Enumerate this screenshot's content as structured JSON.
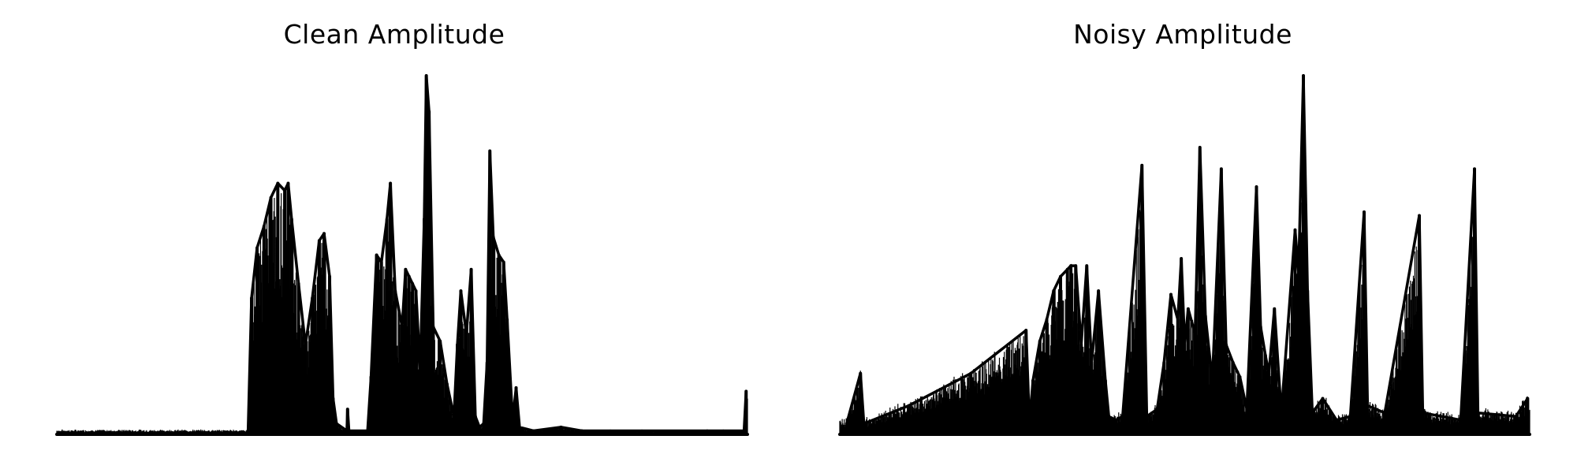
{
  "colors": {
    "background": "#ffffff",
    "series": "#000000"
  },
  "chart_data": [
    {
      "type": "line",
      "title": "Clean Amplitude",
      "xlabel": "",
      "ylabel": "",
      "axes_visible": false,
      "grid": false,
      "x_range": [
        0,
        1
      ],
      "ylim": [
        0,
        1
      ],
      "envelope_peaks": [
        {
          "x": 0.277,
          "y": 0.01
        },
        {
          "x": 0.282,
          "y": 0.38
        },
        {
          "x": 0.29,
          "y": 0.52
        },
        {
          "x": 0.3,
          "y": 0.58
        },
        {
          "x": 0.31,
          "y": 0.66
        },
        {
          "x": 0.32,
          "y": 0.7
        },
        {
          "x": 0.33,
          "y": 0.68
        },
        {
          "x": 0.335,
          "y": 0.7
        },
        {
          "x": 0.34,
          "y": 0.6
        },
        {
          "x": 0.35,
          "y": 0.42
        },
        {
          "x": 0.36,
          "y": 0.25
        },
        {
          "x": 0.37,
          "y": 0.38
        },
        {
          "x": 0.38,
          "y": 0.54
        },
        {
          "x": 0.387,
          "y": 0.56
        },
        {
          "x": 0.395,
          "y": 0.44
        },
        {
          "x": 0.4,
          "y": 0.1
        },
        {
          "x": 0.405,
          "y": 0.03
        },
        {
          "x": 0.42,
          "y": 0.01
        },
        {
          "x": 0.421,
          "y": 0.07
        },
        {
          "x": 0.423,
          "y": 0.01
        },
        {
          "x": 0.45,
          "y": 0.01
        },
        {
          "x": 0.455,
          "y": 0.16
        },
        {
          "x": 0.463,
          "y": 0.5
        },
        {
          "x": 0.47,
          "y": 0.48
        },
        {
          "x": 0.478,
          "y": 0.6
        },
        {
          "x": 0.483,
          "y": 0.7
        },
        {
          "x": 0.49,
          "y": 0.4
        },
        {
          "x": 0.5,
          "y": 0.3
        },
        {
          "x": 0.505,
          "y": 0.46
        },
        {
          "x": 0.51,
          "y": 0.44
        },
        {
          "x": 0.515,
          "y": 0.42
        },
        {
          "x": 0.52,
          "y": 0.4
        },
        {
          "x": 0.526,
          "y": 0.18
        },
        {
          "x": 0.532,
          "y": 0.6
        },
        {
          "x": 0.535,
          "y": 1.0
        },
        {
          "x": 0.539,
          "y": 0.9
        },
        {
          "x": 0.545,
          "y": 0.3
        },
        {
          "x": 0.555,
          "y": 0.26
        },
        {
          "x": 0.565,
          "y": 0.14
        },
        {
          "x": 0.575,
          "y": 0.05
        },
        {
          "x": 0.58,
          "y": 0.25
        },
        {
          "x": 0.585,
          "y": 0.4
        },
        {
          "x": 0.593,
          "y": 0.28
        },
        {
          "x": 0.6,
          "y": 0.46
        },
        {
          "x": 0.606,
          "y": 0.05
        },
        {
          "x": 0.612,
          "y": 0.02
        },
        {
          "x": 0.618,
          "y": 0.03
        },
        {
          "x": 0.623,
          "y": 0.2
        },
        {
          "x": 0.627,
          "y": 0.79
        },
        {
          "x": 0.632,
          "y": 0.55
        },
        {
          "x": 0.64,
          "y": 0.5
        },
        {
          "x": 0.647,
          "y": 0.48
        },
        {
          "x": 0.652,
          "y": 0.32
        },
        {
          "x": 0.66,
          "y": 0.04
        },
        {
          "x": 0.665,
          "y": 0.13
        },
        {
          "x": 0.67,
          "y": 0.02
        },
        {
          "x": 0.69,
          "y": 0.01
        },
        {
          "x": 0.73,
          "y": 0.02
        },
        {
          "x": 0.76,
          "y": 0.01
        },
        {
          "x": 0.995,
          "y": 0.01
        },
        {
          "x": 0.998,
          "y": 0.12
        }
      ]
    },
    {
      "type": "line",
      "title": "Noisy Amplitude",
      "xlabel": "",
      "ylabel": "",
      "axes_visible": false,
      "grid": false,
      "x_range": [
        0,
        1
      ],
      "ylim": [
        0,
        1
      ],
      "envelope_peaks": [
        {
          "x": 0.01,
          "y": 0.03
        },
        {
          "x": 0.03,
          "y": 0.17
        },
        {
          "x": 0.035,
          "y": 0.03
        },
        {
          "x": 0.1,
          "y": 0.08
        },
        {
          "x": 0.19,
          "y": 0.17
        },
        {
          "x": 0.27,
          "y": 0.29
        },
        {
          "x": 0.275,
          "y": 0.03
        },
        {
          "x": 0.28,
          "y": 0.15
        },
        {
          "x": 0.29,
          "y": 0.26
        },
        {
          "x": 0.3,
          "y": 0.32
        },
        {
          "x": 0.31,
          "y": 0.4
        },
        {
          "x": 0.32,
          "y": 0.44
        },
        {
          "x": 0.33,
          "y": 0.46
        },
        {
          "x": 0.335,
          "y": 0.47
        },
        {
          "x": 0.342,
          "y": 0.47
        },
        {
          "x": 0.35,
          "y": 0.25
        },
        {
          "x": 0.358,
          "y": 0.47
        },
        {
          "x": 0.365,
          "y": 0.2
        },
        {
          "x": 0.375,
          "y": 0.4
        },
        {
          "x": 0.385,
          "y": 0.15
        },
        {
          "x": 0.39,
          "y": 0.05
        },
        {
          "x": 0.4,
          "y": 0.04
        },
        {
          "x": 0.41,
          "y": 0.05
        },
        {
          "x": 0.438,
          "y": 0.75
        },
        {
          "x": 0.445,
          "y": 0.05
        },
        {
          "x": 0.46,
          "y": 0.07
        },
        {
          "x": 0.47,
          "y": 0.2
        },
        {
          "x": 0.48,
          "y": 0.39
        },
        {
          "x": 0.49,
          "y": 0.32
        },
        {
          "x": 0.495,
          "y": 0.49
        },
        {
          "x": 0.5,
          "y": 0.25
        },
        {
          "x": 0.505,
          "y": 0.35
        },
        {
          "x": 0.515,
          "y": 0.28
        },
        {
          "x": 0.522,
          "y": 0.8
        },
        {
          "x": 0.53,
          "y": 0.33
        },
        {
          "x": 0.54,
          "y": 0.15
        },
        {
          "x": 0.553,
          "y": 0.74
        },
        {
          "x": 0.56,
          "y": 0.25
        },
        {
          "x": 0.57,
          "y": 0.2
        },
        {
          "x": 0.58,
          "y": 0.16
        },
        {
          "x": 0.59,
          "y": 0.07
        },
        {
          "x": 0.604,
          "y": 0.69
        },
        {
          "x": 0.61,
          "y": 0.3
        },
        {
          "x": 0.617,
          "y": 0.22
        },
        {
          "x": 0.622,
          "y": 0.17
        },
        {
          "x": 0.63,
          "y": 0.35
        },
        {
          "x": 0.64,
          "y": 0.06
        },
        {
          "x": 0.66,
          "y": 0.57
        },
        {
          "x": 0.665,
          "y": 0.45
        },
        {
          "x": 0.672,
          "y": 1.0
        },
        {
          "x": 0.678,
          "y": 0.4
        },
        {
          "x": 0.685,
          "y": 0.06
        },
        {
          "x": 0.7,
          "y": 0.1
        },
        {
          "x": 0.72,
          "y": 0.04
        },
        {
          "x": 0.74,
          "y": 0.05
        },
        {
          "x": 0.76,
          "y": 0.62
        },
        {
          "x": 0.765,
          "y": 0.08
        },
        {
          "x": 0.79,
          "y": 0.06
        },
        {
          "x": 0.84,
          "y": 0.61
        },
        {
          "x": 0.845,
          "y": 0.06
        },
        {
          "x": 0.9,
          "y": 0.04
        },
        {
          "x": 0.92,
          "y": 0.74
        },
        {
          "x": 0.925,
          "y": 0.06
        },
        {
          "x": 0.98,
          "y": 0.05
        },
        {
          "x": 0.997,
          "y": 0.1
        }
      ]
    }
  ]
}
